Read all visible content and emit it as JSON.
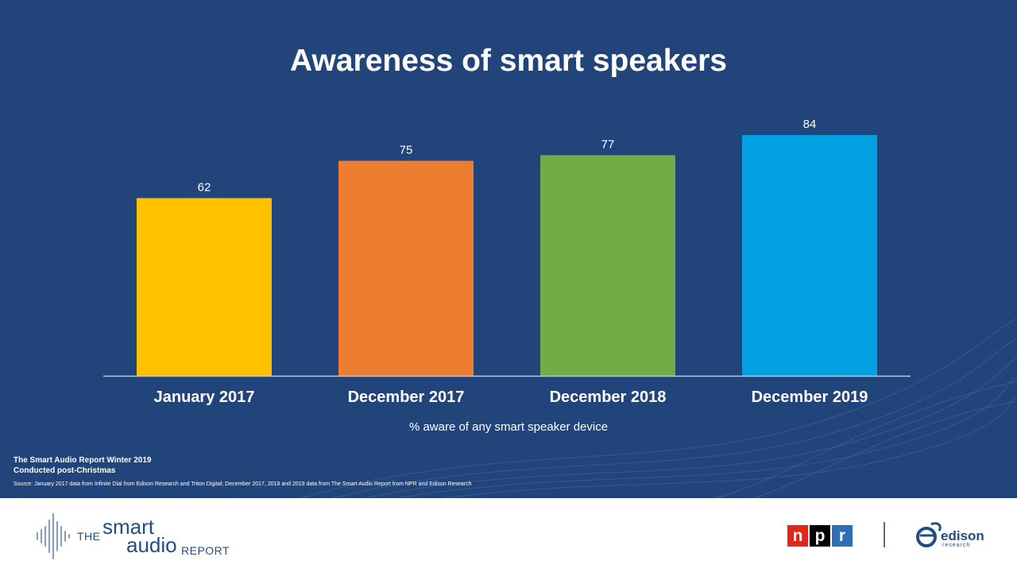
{
  "slide": {
    "title": "Awareness of smart speakers",
    "subtitle": "% aware of any smart speaker device",
    "report_name": "The Smart Audio Report Winter 2019",
    "report_note": "Conducted post-Christmas",
    "source": "Source: January 2017 data from Infinite Dial from Edison Research and Triton Digital; December 2017, 2018 and 2019 data from The Smart Audio Report from NPR and Edison Research"
  },
  "chart_data": {
    "type": "bar",
    "title": "Awareness of smart speakers",
    "xlabel": "% aware of any smart speaker device",
    "ylabel": "",
    "categories": [
      "January 2017",
      "December 2017",
      "December 2018",
      "December 2019"
    ],
    "values": [
      62,
      75,
      77,
      84
    ],
    "colors": [
      "#ffc000",
      "#ed7d31",
      "#70ad47",
      "#00a0e2"
    ],
    "ylim": [
      0,
      84
    ],
    "grid": false
  },
  "footer": {
    "sar_the": "THE",
    "sar_smart": "smart",
    "sar_audio": "audio",
    "sar_report": "REPORT",
    "npr_n": "n",
    "npr_p": "p",
    "npr_r": "r",
    "edison_name": "edison",
    "edison_sub": "research"
  },
  "colors": {
    "background": "#21457b",
    "axis": "#bcc6d6",
    "text": "#ffffff",
    "brand_blue": "#1f4e82"
  }
}
